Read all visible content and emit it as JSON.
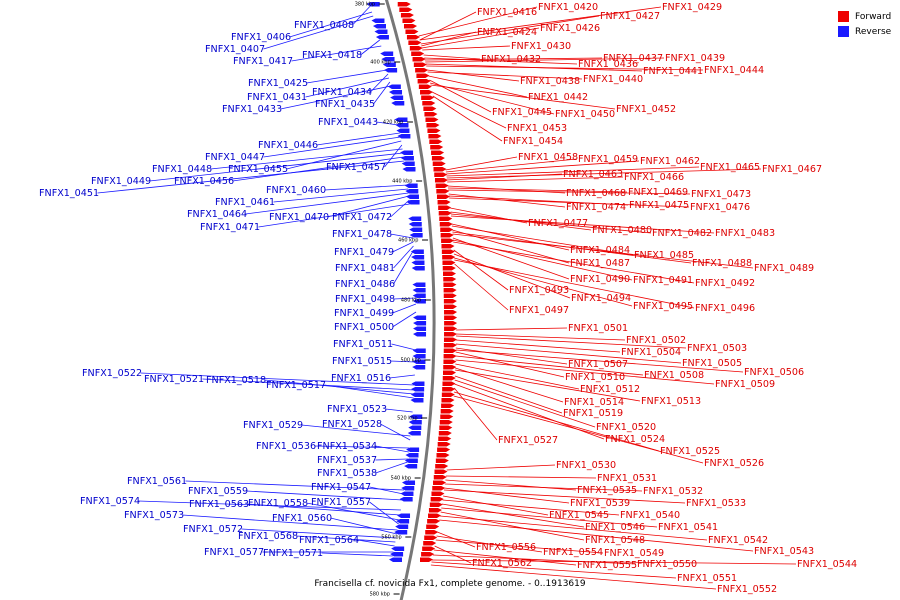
{
  "title": "Francisella cf. novicida Fx1, complete genome. - 0..1913619",
  "legend": {
    "forward": {
      "label": "Forward",
      "color": "#ee0000"
    },
    "reverse": {
      "label": "Reverse",
      "color": "#1a1aff"
    }
  },
  "scale_unit": "kbp",
  "scale_ticks": [
    380,
    400,
    420,
    440,
    460,
    480,
    500,
    520,
    540,
    560,
    580
  ],
  "forward_genes": [
    "FNFX1_0416",
    "FNFX1_0420",
    "FNFX1_0427",
    "FNFX1_0429",
    "FNFX1_0424",
    "FNFX1_0426",
    "FNFX1_0430",
    "FNFX1_0432",
    "FNFX1_0436",
    "FNFX1_0437",
    "FNFX1_0439",
    "FNFX1_0441",
    "FNFX1_0444",
    "FNFX1_0438",
    "FNFX1_0440",
    "FNFX1_0442",
    "FNFX1_0445",
    "FNFX1_0450",
    "FNFX1_0452",
    "FNFX1_0453",
    "FNFX1_0454",
    "FNFX1_0458",
    "FNFX1_0459",
    "FNFX1_0462",
    "FNFX1_0465",
    "FNFX1_0467",
    "FNFX1_0463",
    "FNFX1_0466",
    "FNFX1_0468",
    "FNFX1_0469",
    "FNFX1_0473",
    "FNFX1_0474",
    "FNFX1_0475",
    "FNFX1_0476",
    "FNFX1_0477",
    "FNFX1_0480",
    "FNFX1_0482",
    "FNFX1_0483",
    "FNFX1_0484",
    "FNFX1_0485",
    "FNFX1_0487",
    "FNFX1_0488",
    "FNFX1_0489",
    "FNFX1_0490",
    "FNFX1_0491",
    "FNFX1_0492",
    "FNFX1_0493",
    "FNFX1_0494",
    "FNFX1_0495",
    "FNFX1_0496",
    "FNFX1_0497",
    "FNFX1_0501",
    "FNFX1_0502",
    "FNFX1_0503",
    "FNFX1_0504",
    "FNFX1_0505",
    "FNFX1_0507",
    "FNFX1_0506",
    "FNFX1_0510",
    "FNFX1_0508",
    "FNFX1_0509",
    "FNFX1_0512",
    "FNFX1_0514",
    "FNFX1_0513",
    "FNFX1_0519",
    "FNFX1_0520",
    "FNFX1_0524",
    "FNFX1_0527",
    "FNFX1_0525",
    "FNFX1_0526",
    "FNFX1_0530",
    "FNFX1_0531",
    "FNFX1_0535",
    "FNFX1_0532",
    "FNFX1_0539",
    "FNFX1_0533",
    "FNFX1_0545",
    "FNFX1_0540",
    "FNFX1_0546",
    "FNFX1_0541",
    "FNFX1_0548",
    "FNFX1_0542",
    "FNFX1_0543",
    "FNFX1_0556",
    "FNFX1_0554",
    "FNFX1_0549",
    "FNFX1_0562",
    "FNFX1_0555",
    "FNFX1_0550",
    "FNFX1_0544",
    "FNFX1_0551",
    "FNFX1_0552"
  ],
  "reverse_genes": [
    "FNFX1_0408",
    "FNFX1_0406",
    "FNFX1_0407",
    "FNFX1_0418",
    "FNFX1_0417",
    "FNFX1_0425",
    "FNFX1_0434",
    "FNFX1_0431",
    "FNFX1_0435",
    "FNFX1_0433",
    "FNFX1_0443",
    "FNFX1_0446",
    "FNFX1_0447",
    "FNFX1_0455",
    "FNFX1_0457",
    "FNFX1_0448",
    "FNFX1_0449",
    "FNFX1_0456",
    "FNFX1_0451",
    "FNFX1_0460",
    "FNFX1_0461",
    "FNFX1_0464",
    "FNFX1_0470",
    "FNFX1_0472",
    "FNFX1_0471",
    "FNFX1_0478",
    "FNFX1_0479",
    "FNFX1_0481",
    "FNFX1_0486",
    "FNFX1_0498",
    "FNFX1_0499",
    "FNFX1_0500",
    "FNFX1_0511",
    "FNFX1_0515",
    "FNFX1_0522",
    "FNFX1_0516",
    "FNFX1_0521",
    "FNFX1_0518",
    "FNFX1_0517",
    "FNFX1_0523",
    "FNFX1_0529",
    "FNFX1_0528",
    "FNFX1_0536",
    "FNFX1_0534",
    "FNFX1_0537",
    "FNFX1_0538",
    "FNFX1_0561",
    "FNFX1_0547",
    "FNFX1_0559",
    "FNFX1_0574",
    "FNFX1_0563",
    "FNFX1_0558",
    "FNFX1_0557",
    "FNFX1_0573",
    "FNFX1_0560",
    "FNFX1_0572",
    "FNFX1_0568",
    "FNFX1_0564",
    "FNFX1_0577",
    "FNFX1_0571"
  ]
}
